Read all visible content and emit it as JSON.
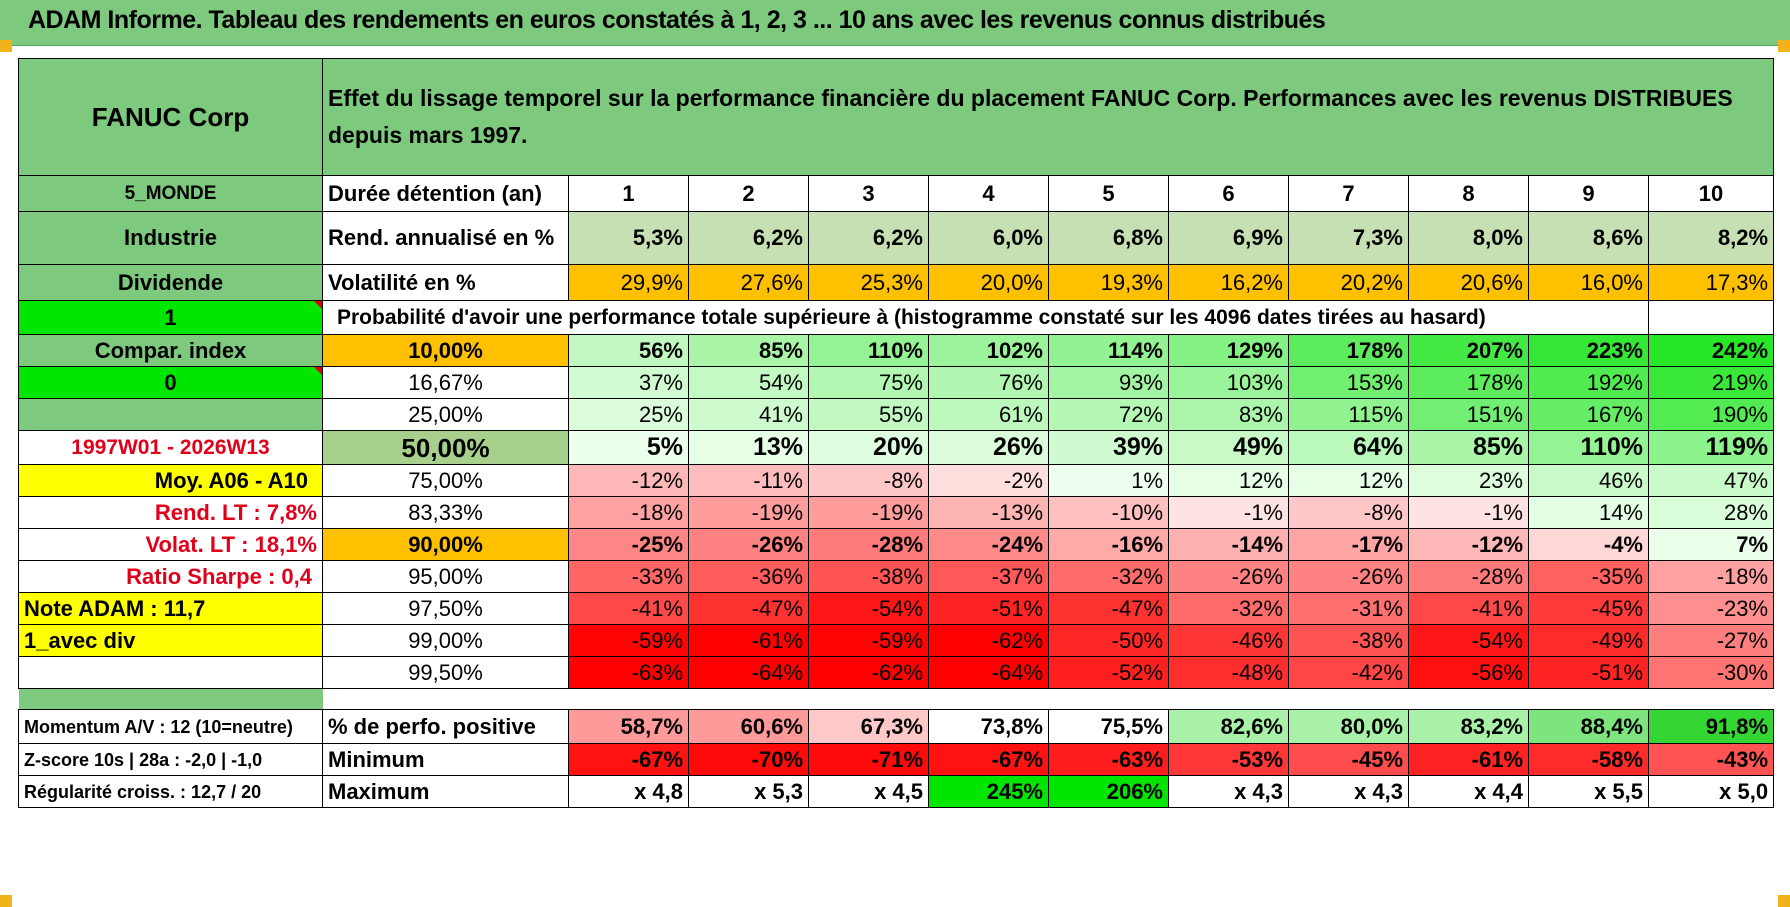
{
  "header": {
    "title": "ADAM Informe. Tableau des rendements en euros constatés à 1, 2, 3 ... 10 ans avec les revenus connus distribués"
  },
  "company": {
    "name": "FANUC Corp",
    "description": "Effet du lissage temporel sur la performance financière du placement FANUC Corp. Performances avec les revenus DISTRIBUES depuis mars 1997."
  },
  "side": {
    "region": "5_MONDE",
    "sector": "Industrie",
    "type": "Dividende",
    "flag1": "1",
    "compar_label": "Compar. index",
    "flag0": "0",
    "period": "1997W01 - 2026W13",
    "moy": "Moy. A06 - A10",
    "rend_lt": "Rend. LT :   7,8%",
    "volat_lt": "Volat. LT :   18,1%",
    "sharpe": "Ratio Sharpe :    0,4",
    "note": "Note ADAM : 11,7",
    "avec_div": "1_avec div",
    "momentum": "Momentum A/V : 12 (10=neutre)",
    "zscore": "Z-score 10s | 28a : -2,0 | -1,0",
    "regularite": "Régularité croiss. : 12,7 / 20"
  },
  "labels": {
    "duree": "Durée détention (an)",
    "rend": "Rend. annualisé en %",
    "vol": "Volatilité en %",
    "proba": "Probabilité d'avoir une performance totale supérieure à (histogramme constaté sur les 4096 dates tirées au hasard)",
    "pct_pos": "% de perfo. positive",
    "minimum": "Minimum",
    "maximum": "Maximum"
  },
  "years": [
    "1",
    "2",
    "3",
    "4",
    "5",
    "6",
    "7",
    "8",
    "9",
    "10"
  ],
  "rend": [
    "5,3%",
    "6,2%",
    "6,2%",
    "6,0%",
    "6,8%",
    "6,9%",
    "7,3%",
    "8,0%",
    "8,6%",
    "8,2%"
  ],
  "vol": [
    "29,9%",
    "27,6%",
    "25,3%",
    "20,0%",
    "19,3%",
    "16,2%",
    "20,2%",
    "20,6%",
    "16,0%",
    "17,3%"
  ],
  "prob_rows": [
    {
      "p": "10,00%",
      "v": [
        "56%",
        "85%",
        "110%",
        "102%",
        "114%",
        "129%",
        "178%",
        "207%",
        "223%",
        "242%"
      ]
    },
    {
      "p": "16,67%",
      "v": [
        "37%",
        "54%",
        "75%",
        "76%",
        "93%",
        "103%",
        "153%",
        "178%",
        "192%",
        "219%"
      ]
    },
    {
      "p": "25,00%",
      "v": [
        "25%",
        "41%",
        "55%",
        "61%",
        "72%",
        "83%",
        "115%",
        "151%",
        "167%",
        "190%"
      ]
    },
    {
      "p": "50,00%",
      "v": [
        "5%",
        "13%",
        "20%",
        "26%",
        "39%",
        "49%",
        "64%",
        "85%",
        "110%",
        "119%"
      ]
    },
    {
      "p": "75,00%",
      "v": [
        "-12%",
        "-11%",
        "-8%",
        "-2%",
        "1%",
        "12%",
        "12%",
        "23%",
        "46%",
        "47%"
      ]
    },
    {
      "p": "83,33%",
      "v": [
        "-18%",
        "-19%",
        "-19%",
        "-13%",
        "-10%",
        "-1%",
        "-8%",
        "-1%",
        "14%",
        "28%"
      ]
    },
    {
      "p": "90,00%",
      "v": [
        "-25%",
        "-26%",
        "-28%",
        "-24%",
        "-16%",
        "-14%",
        "-17%",
        "-12%",
        "-4%",
        "7%"
      ]
    },
    {
      "p": "95,00%",
      "v": [
        "-33%",
        "-36%",
        "-38%",
        "-37%",
        "-32%",
        "-26%",
        "-26%",
        "-28%",
        "-35%",
        "-18%"
      ]
    },
    {
      "p": "97,50%",
      "v": [
        "-41%",
        "-47%",
        "-54%",
        "-51%",
        "-47%",
        "-32%",
        "-31%",
        "-41%",
        "-45%",
        "-23%"
      ]
    },
    {
      "p": "99,00%",
      "v": [
        "-59%",
        "-61%",
        "-59%",
        "-62%",
        "-50%",
        "-46%",
        "-38%",
        "-54%",
        "-49%",
        "-27%"
      ]
    },
    {
      "p": "99,50%",
      "v": [
        "-63%",
        "-64%",
        "-62%",
        "-64%",
        "-52%",
        "-48%",
        "-42%",
        "-56%",
        "-51%",
        "-30%"
      ]
    }
  ],
  "pct_pos": [
    "58,7%",
    "60,6%",
    "67,3%",
    "73,8%",
    "75,5%",
    "82,6%",
    "80,0%",
    "83,2%",
    "88,4%",
    "91,8%"
  ],
  "minimum": [
    "-67%",
    "-70%",
    "-71%",
    "-67%",
    "-63%",
    "-53%",
    "-45%",
    "-61%",
    "-58%",
    "-43%"
  ],
  "maximum": [
    "x 4,8",
    "x 5,3",
    "x 4,5",
    "245%",
    "206%",
    "x 4,3",
    "x 4,3",
    "x 4,4",
    "x 5,5",
    "x 5,0"
  ],
  "colors": {
    "header_green": "#7dc97d",
    "bright_green": "#00e600",
    "orange": "#ffc000",
    "yellow": "#ffff00",
    "label_red": "#e0001a",
    "strong_red": "#ff0000"
  }
}
